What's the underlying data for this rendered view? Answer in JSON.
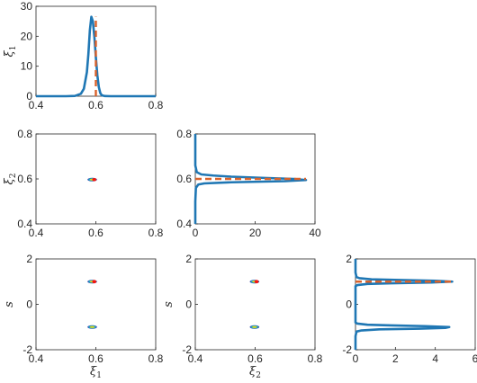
{
  "colors": {
    "density": "#1F77B4",
    "truth": "#D9622B",
    "contour_outer": "#2E3A9E",
    "contour_mid1": "#1E88D6",
    "contour_mid2": "#2BBFA0",
    "contour_inner": "#E8D21A",
    "contour_peak": "#F5160F"
  },
  "chart_data": [
    {
      "type": "line",
      "panel": "xi1-marginal",
      "ylabel": "ξ1",
      "xlim": [
        0.4,
        0.8
      ],
      "ylim": [
        0,
        30
      ],
      "xticks": [
        "0.4",
        "0.6",
        "0.8"
      ],
      "yticks": [
        "0",
        "10",
        "20",
        "30"
      ],
      "density": {
        "x": [
          0.4,
          0.5,
          0.53,
          0.55,
          0.56,
          0.57,
          0.575,
          0.58,
          0.585,
          0.59,
          0.595,
          0.6,
          0.605,
          0.61,
          0.615,
          0.62,
          0.63,
          0.65,
          0.8
        ],
        "y": [
          0,
          0,
          0.1,
          0.8,
          2.5,
          8,
          14,
          22,
          26.5,
          25,
          20,
          13,
          7,
          3,
          1,
          0.3,
          0.05,
          0,
          0
        ]
      },
      "truth": 0.6
    },
    {
      "type": "heatmap",
      "panel": "xi1-xi2-joint",
      "xlabel": "",
      "ylabel": "ξ2",
      "xlim": [
        0.4,
        0.8
      ],
      "ylim": [
        0.4,
        0.8
      ],
      "xticks": [
        "0.4",
        "0.6",
        "0.8"
      ],
      "yticks": [
        "0.4",
        "0.6",
        "0.8"
      ],
      "modes": [
        {
          "cx": 0.588,
          "cy": 0.597,
          "sx": 0.016,
          "sy": 0.008,
          "peak": true
        }
      ]
    },
    {
      "type": "line",
      "panel": "xi2-marginal",
      "xlim": [
        0,
        40
      ],
      "ylim": [
        0.4,
        0.8
      ],
      "xticks": [
        "0",
        "20",
        "40"
      ],
      "yticks": [
        "0.4",
        "0.6",
        "0.8"
      ],
      "density": {
        "y": [
          0.4,
          0.5,
          0.56,
          0.575,
          0.58,
          0.585,
          0.59,
          0.595,
          0.6,
          0.605,
          0.61,
          0.615,
          0.62,
          0.63,
          0.66,
          0.8
        ],
        "x": [
          0,
          0,
          0.2,
          1,
          3,
          12,
          30,
          37,
          33,
          22,
          12,
          6,
          2,
          0.5,
          0,
          0
        ]
      },
      "truth": 0.6
    },
    {
      "type": "heatmap",
      "panel": "xi1-s-joint",
      "xlabel": "ξ1",
      "ylabel": "s",
      "xlim": [
        0.4,
        0.8
      ],
      "ylim": [
        -2,
        2
      ],
      "xticks": [
        "0.4",
        "0.6",
        "0.8"
      ],
      "yticks": [
        "-2",
        "0",
        "2"
      ],
      "modes": [
        {
          "cx": 0.588,
          "cy": 1.0,
          "sx": 0.016,
          "sy": 0.08,
          "peak": true
        },
        {
          "cx": 0.588,
          "cy": -1.0,
          "sx": 0.016,
          "sy": 0.08,
          "peak": false
        }
      ]
    },
    {
      "type": "heatmap",
      "panel": "xi2-s-joint",
      "xlabel": "ξ2",
      "ylabel": "s",
      "xlim": [
        0.4,
        0.8
      ],
      "ylim": [
        -2,
        2
      ],
      "xticks": [
        "0.4",
        "0.6",
        "0.8"
      ],
      "yticks": [
        "-2",
        "0",
        "2"
      ],
      "modes": [
        {
          "cx": 0.598,
          "cy": 1.0,
          "sx": 0.016,
          "sy": 0.08,
          "peak": true
        },
        {
          "cx": 0.598,
          "cy": -1.0,
          "sx": 0.016,
          "sy": 0.08,
          "peak": false
        }
      ]
    },
    {
      "type": "line",
      "panel": "s-marginal",
      "xlim": [
        0,
        6
      ],
      "ylim": [
        -2,
        2
      ],
      "xticks": [
        "0",
        "2",
        "4",
        "6"
      ],
      "yticks": [
        "-2",
        "0",
        "2"
      ],
      "density": {
        "y": [
          -2.0,
          -1.4,
          -1.2,
          -1.15,
          -1.1,
          -1.07,
          -1.04,
          -1.0,
          -0.96,
          -0.93,
          -0.9,
          -0.85,
          -0.8,
          0.8,
          0.85,
          0.9,
          0.93,
          0.96,
          1.0,
          1.04,
          1.07,
          1.1,
          1.15,
          1.2,
          1.4,
          2.0
        ],
        "x": [
          0,
          0,
          0.05,
          0.3,
          1.2,
          3.2,
          4.5,
          4.7,
          3.5,
          1.8,
          0.6,
          0.1,
          0,
          0,
          0.1,
          0.6,
          1.8,
          3.8,
          4.85,
          4.0,
          2.2,
          0.8,
          0.2,
          0.05,
          0,
          0
        ]
      },
      "truth": 1.0
    }
  ]
}
